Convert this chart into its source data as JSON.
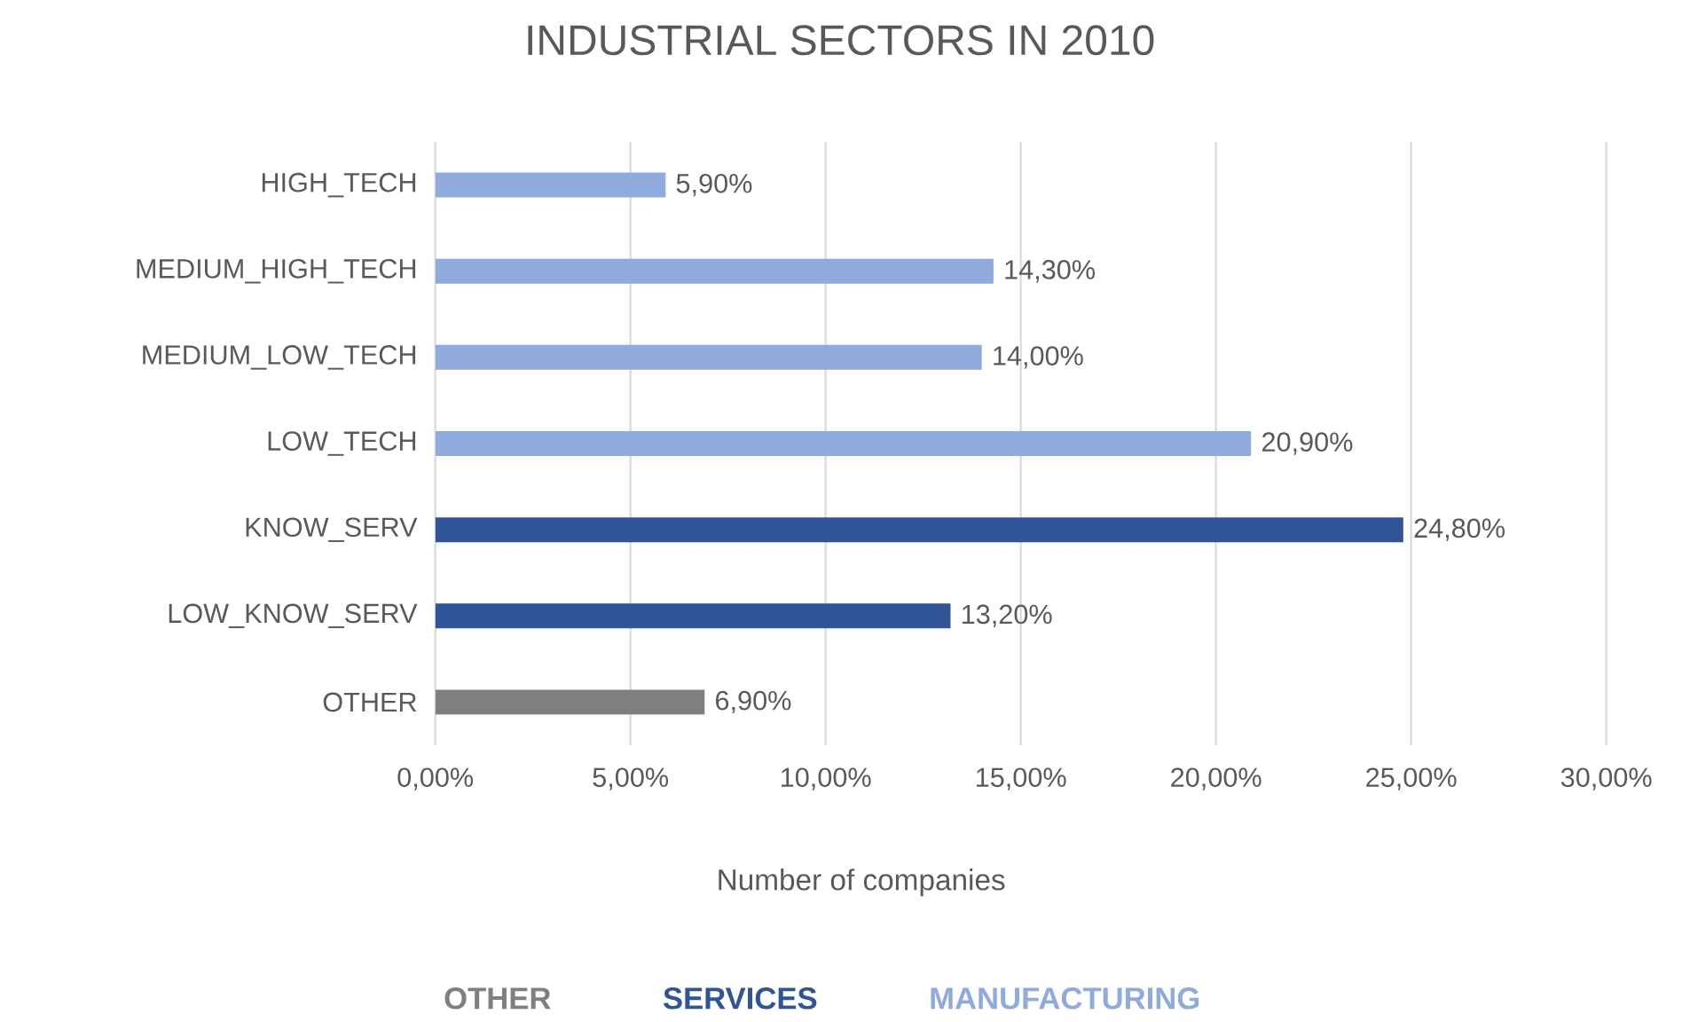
{
  "chart_data": {
    "type": "bar",
    "orientation": "horizontal",
    "title": "INDUSTRIAL SECTORS IN 2010",
    "xlabel": "Number of companies",
    "categories": [
      "HIGH_TECH",
      "MEDIUM_HIGH_TECH",
      "MEDIUM_LOW_TECH",
      "LOW_TECH",
      "KNOW_SERV",
      "LOW_KNOW_SERV",
      "OTHER"
    ],
    "series": [
      {
        "name": "OTHER",
        "color": "#7f7f7f",
        "values": [
          null,
          null,
          null,
          null,
          null,
          null,
          6.9
        ],
        "value_labels": [
          null,
          null,
          null,
          null,
          null,
          null,
          "6,90%"
        ]
      },
      {
        "name": "SERVICES",
        "color": "#2f5597",
        "values": [
          null,
          null,
          null,
          null,
          24.8,
          13.2,
          null
        ],
        "value_labels": [
          null,
          null,
          null,
          null,
          "24,80%",
          "13,20%",
          null
        ]
      },
      {
        "name": "MANUFACTURING",
        "color": "#8faadc",
        "values": [
          5.9,
          14.3,
          14.0,
          20.9,
          null,
          null,
          null
        ],
        "value_labels": [
          "5,90%",
          "14,30%",
          "14,00%",
          "20,90%",
          null,
          null,
          null
        ]
      }
    ],
    "xlim": [
      0,
      30
    ],
    "xticks": [
      {
        "value": 0,
        "label": "0,00%"
      },
      {
        "value": 5,
        "label": "5,00%"
      },
      {
        "value": 10,
        "label": "10,00%"
      },
      {
        "value": 15,
        "label": "15,00%"
      },
      {
        "value": 20,
        "label": "20,00%"
      },
      {
        "value": 25,
        "label": "25,00%"
      },
      {
        "value": 30,
        "label": "30,00%"
      }
    ],
    "grid": "x",
    "legend": "bottom"
  }
}
